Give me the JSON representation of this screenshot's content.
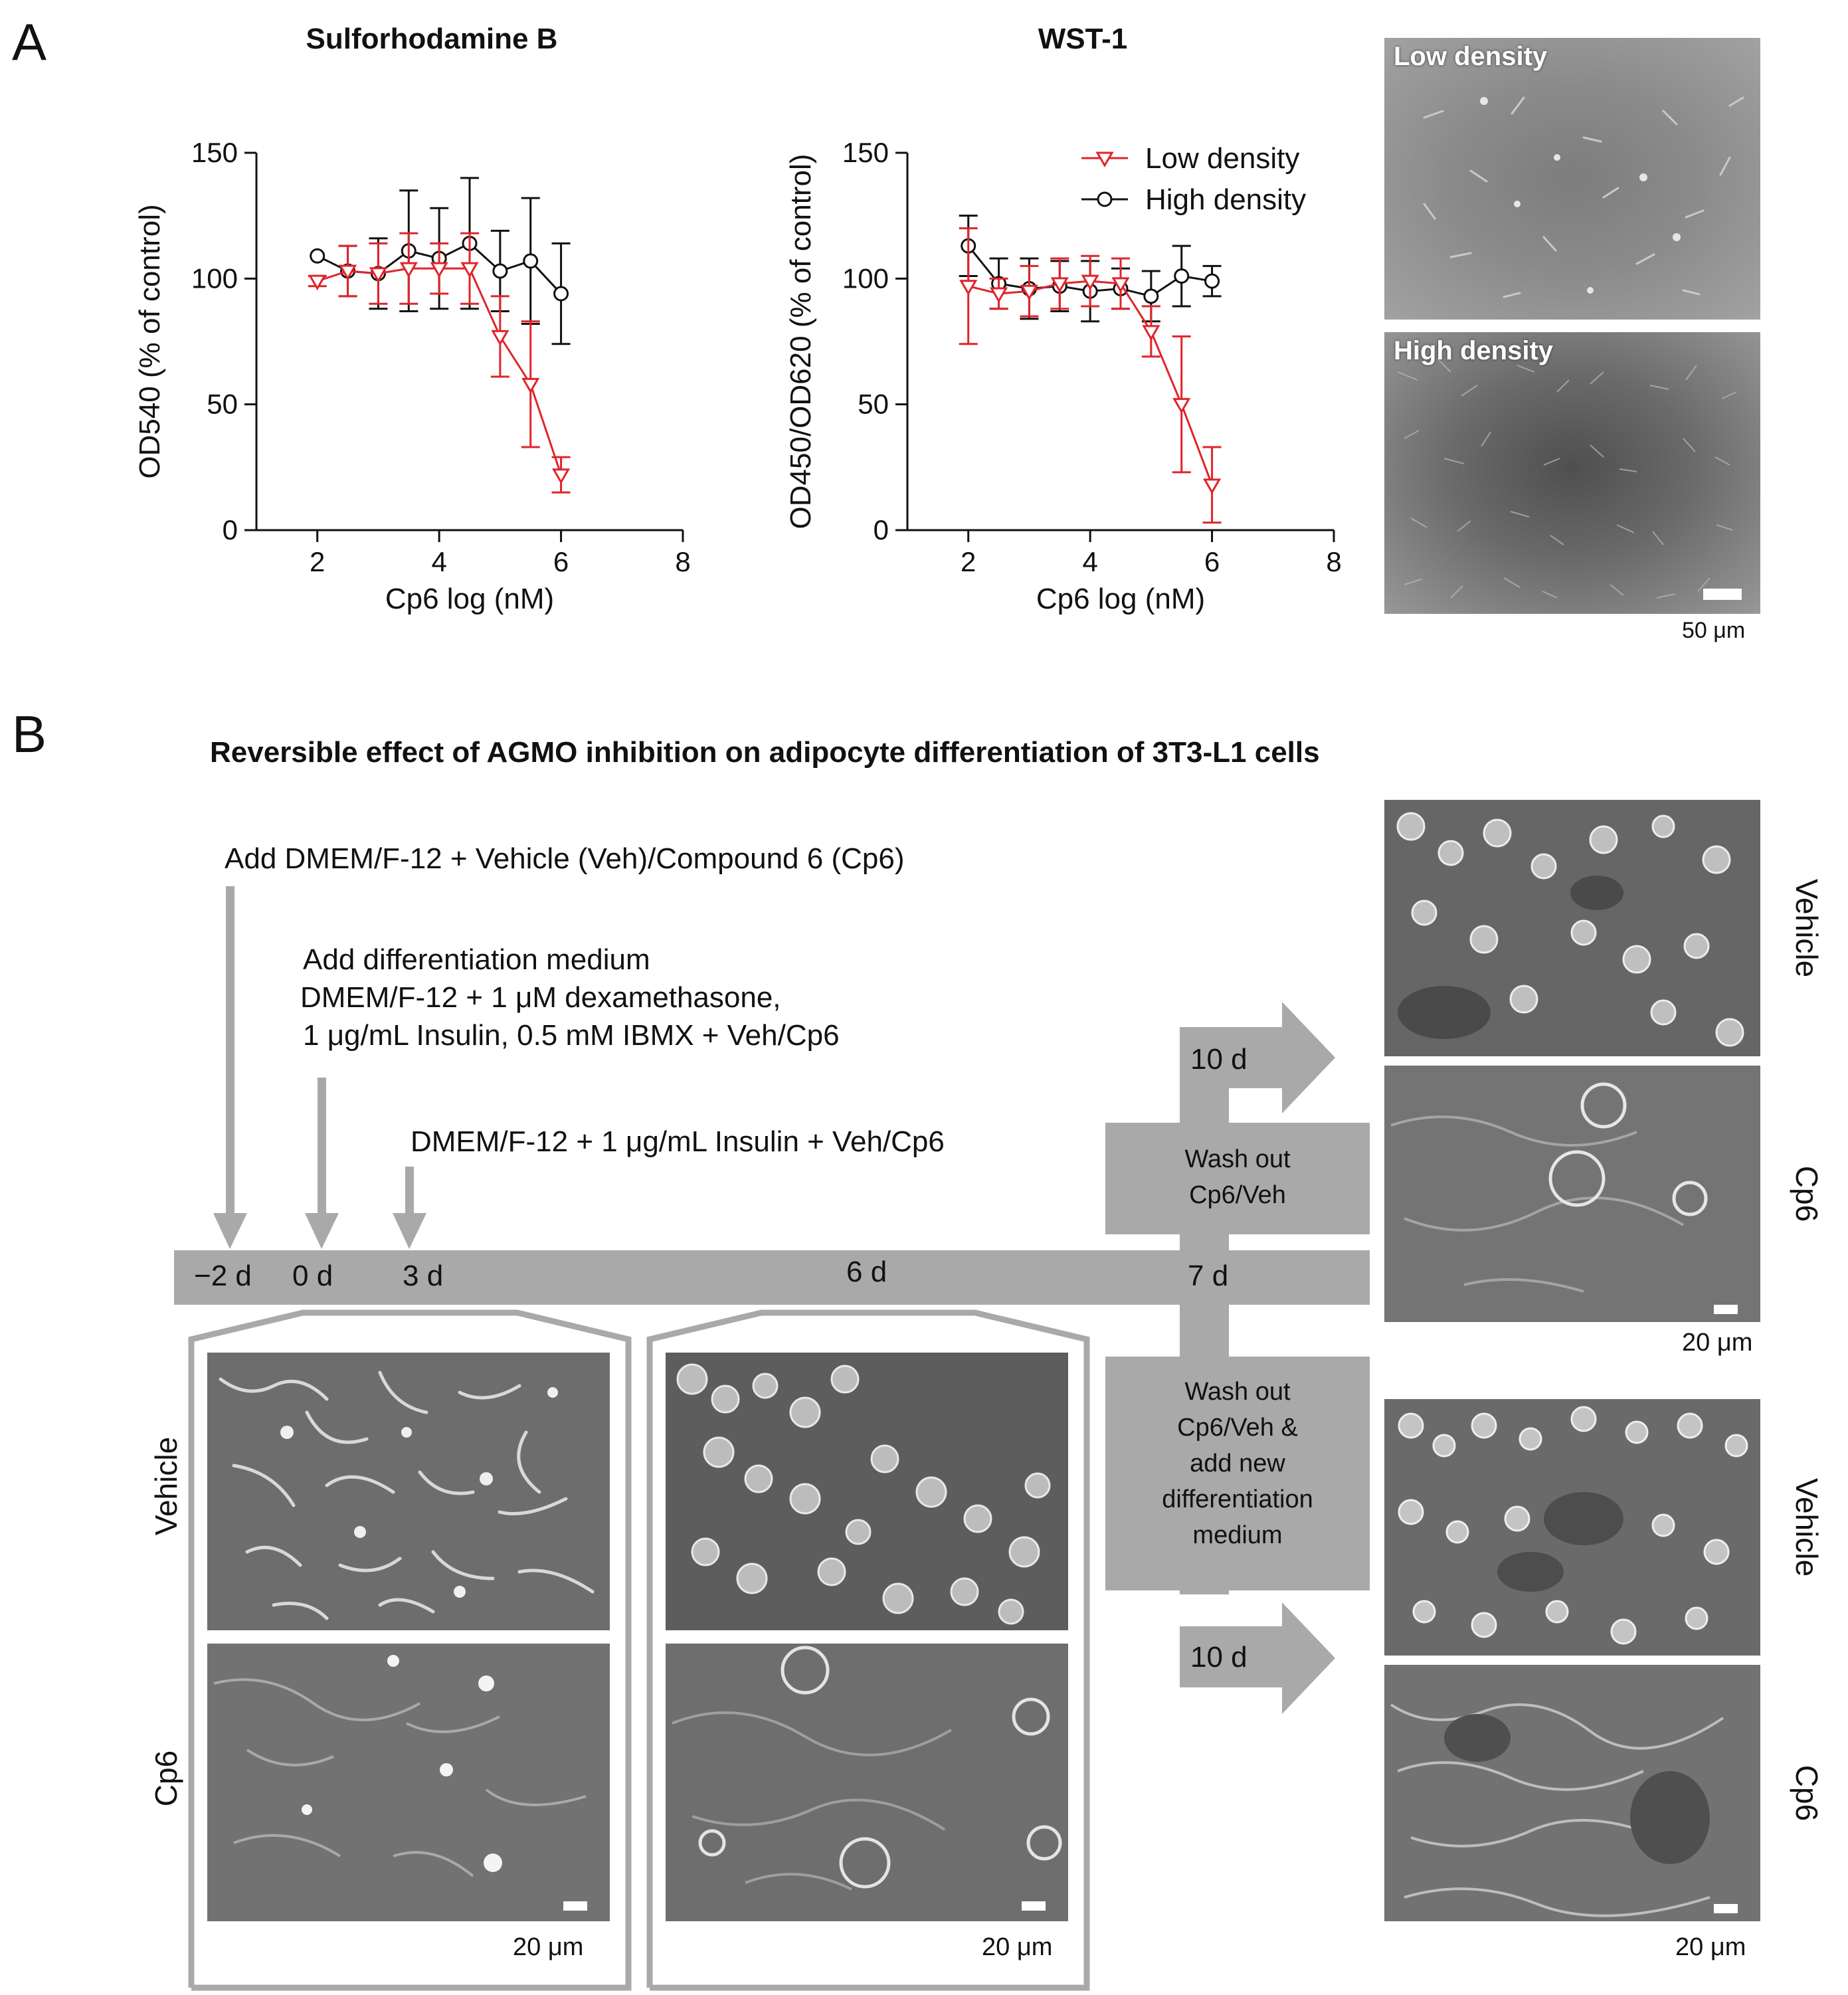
{
  "panel_a": {
    "letter": "A",
    "srb": {
      "title": "Sulforhodamine B"
    },
    "wst": {
      "title": "WST-1"
    },
    "legend": {
      "low": "Low density",
      "high": "High density"
    },
    "micrographs": {
      "low_label": "Low density",
      "high_label": "High density",
      "scale": "50 μm"
    }
  },
  "panel_b": {
    "letter": "B",
    "title": "Reversible effect of AGMO inhibition on adipocyte differentiation of 3T3-L1 cells",
    "steps": {
      "step1": "Add DMEM/F-12 + Vehicle (Veh)/Compound 6 (Cp6)",
      "step2_line1": "Add differentiation medium",
      "step2_line2": "DMEM/F-12 + 1 μM dexamethasone,",
      "step2_line3": "1 μg/mL Insulin, 0.5 mM IBMX + Veh/Cp6",
      "step3": "DMEM/F-12 + 1 μg/mL Insulin + Veh/Cp6"
    },
    "days": {
      "d_minus2": "−2 d",
      "d0": "0 d",
      "d3": "3 d",
      "d6": "6 d",
      "d7": "7 d",
      "arrow_top": "10 d",
      "arrow_bottom": "10 d"
    },
    "boxes": {
      "washout1_l1": "Wash out",
      "washout1_l2": "Cp6/Veh",
      "washout2_l1": "Wash out",
      "washout2_l2": "Cp6/Veh &",
      "washout2_l3": "add new",
      "washout2_l4": "differentiation",
      "washout2_l5": "medium"
    },
    "row_labels": {
      "vehicle": "Vehicle",
      "cp6": "Cp6"
    },
    "scale": "20 μm"
  },
  "chart_data": [
    {
      "type": "line",
      "title": "Sulforhodamine B",
      "xlabel": "Cp6 log (nM)",
      "ylabel": "OD540 (% of control)",
      "xlim": [
        1,
        8
      ],
      "ylim": [
        0,
        150
      ],
      "xticks": [
        2,
        4,
        6,
        8
      ],
      "yticks": [
        0,
        50,
        100,
        150
      ],
      "series": [
        {
          "name": "Low density",
          "color": "#e0242b",
          "marker": "triangle-down",
          "x": [
            2,
            2.5,
            3,
            3.5,
            4,
            4.5,
            5,
            5.5,
            6
          ],
          "y": [
            99,
            103,
            102,
            104,
            104,
            104,
            77,
            58,
            22
          ],
          "err": [
            2,
            10,
            12,
            14,
            10,
            14,
            16,
            25,
            7
          ]
        },
        {
          "name": "High density",
          "color": "#111111",
          "marker": "circle",
          "x": [
            2,
            2.5,
            3,
            3.5,
            4,
            4.5,
            5,
            5.5,
            6
          ],
          "y": [
            109,
            103,
            102,
            111,
            108,
            114,
            103,
            107,
            94
          ],
          "err": [
            0,
            10,
            14,
            24,
            20,
            26,
            16,
            25,
            20
          ]
        }
      ]
    },
    {
      "type": "line",
      "title": "WST-1",
      "xlabel": "Cp6 log (nM)",
      "ylabel": "OD450/OD620 (% of control)",
      "xlim": [
        1,
        8
      ],
      "ylim": [
        0,
        150
      ],
      "xticks": [
        2,
        4,
        6,
        8
      ],
      "yticks": [
        0,
        50,
        100,
        150
      ],
      "legend": "top-right",
      "series": [
        {
          "name": "Low density",
          "color": "#e0242b",
          "marker": "triangle-down",
          "x": [
            2,
            2.5,
            3,
            3.5,
            4,
            4.5,
            5,
            5.5,
            6
          ],
          "y": [
            97,
            94,
            95,
            98,
            99,
            98,
            79,
            50,
            18
          ],
          "err": [
            23,
            6,
            10,
            10,
            10,
            10,
            10,
            27,
            15
          ]
        },
        {
          "name": "High density",
          "color": "#111111",
          "marker": "circle",
          "x": [
            2,
            2.5,
            3,
            3.5,
            4,
            4.5,
            5,
            5.5,
            6
          ],
          "y": [
            113,
            98,
            96,
            97,
            95,
            96,
            93,
            101,
            99
          ],
          "err": [
            12,
            10,
            12,
            10,
            12,
            8,
            10,
            12,
            6
          ]
        }
      ]
    }
  ]
}
